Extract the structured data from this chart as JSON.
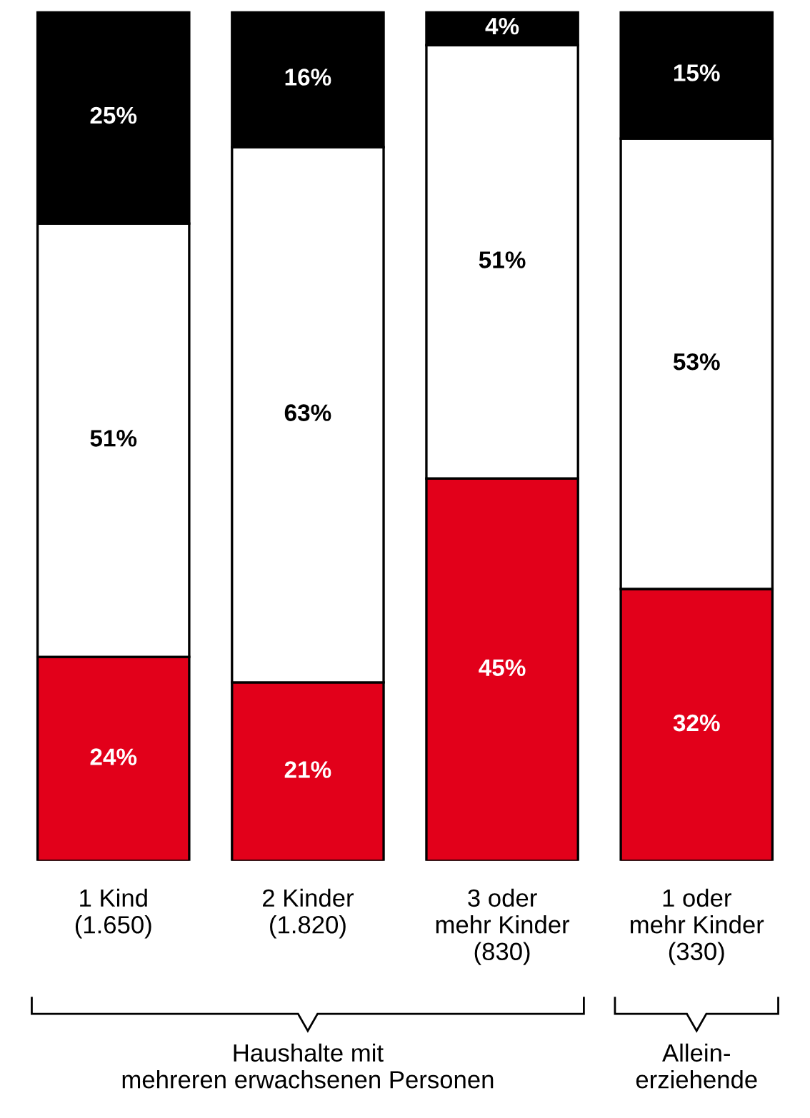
{
  "chart_data": {
    "type": "bar",
    "stacked": true,
    "categories": [
      "1 Kind\n(1.650)",
      "2 Kinder\n(1.820)",
      "3 oder\nmehr Kinder\n(830)",
      "1 oder\nmehr Kinder\n(330)"
    ],
    "series": [
      {
        "color": "#e2001a",
        "values": [
          24,
          21,
          45,
          32
        ],
        "value_labels": [
          "24%",
          "21%",
          "45%",
          "32%"
        ]
      },
      {
        "color": "#ffffff",
        "values": [
          51,
          63,
          51,
          53
        ],
        "value_labels": [
          "51%",
          "63%",
          "51%",
          "53%"
        ]
      },
      {
        "color": "#000000",
        "values": [
          25,
          16,
          4,
          15
        ],
        "value_labels": [
          "25%",
          "16%",
          "4%",
          "15%"
        ]
      }
    ],
    "ylim": [
      0,
      100
    ],
    "tick_labels": "x",
    "legend": false,
    "grid": false,
    "annotations": [
      "Haushalte mit\nmehreren erwachsenen Personen",
      "Allein-\nerziehende"
    ]
  }
}
